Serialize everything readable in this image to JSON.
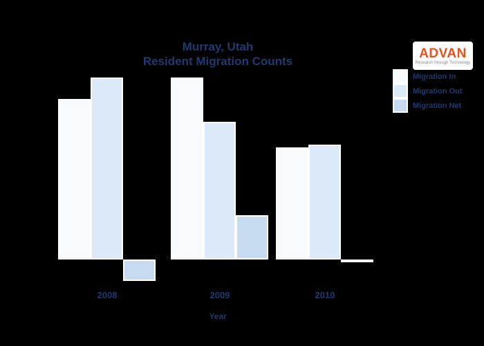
{
  "title": {
    "line1": "Murray, Utah",
    "line2": "Resident Migration Counts"
  },
  "logo": {
    "name": "ADVAN",
    "tagline": "Research through Technology",
    "name_color": "#e8511d"
  },
  "xaxis": {
    "title": "Year"
  },
  "colors": {
    "background": "#000000",
    "text_navy": "#1e3a70",
    "bar_border": "#ffffff"
  },
  "chart_data": {
    "type": "bar",
    "title": "Murray, Utah Resident Migration Counts",
    "categories": [
      "2008",
      "2009",
      "2010"
    ],
    "series": [
      {
        "name": "Migration In",
        "color": "#f8fbfe",
        "values": [
          2320,
          2630,
          1620
        ]
      },
      {
        "name": "Migration Out",
        "color": "#dce9f8",
        "values": [
          2630,
          1990,
          1660
        ]
      },
      {
        "name": "Migration Net",
        "color": "#c6dbf0",
        "values": [
          -310,
          640,
          -40
        ]
      }
    ],
    "xlabel": "Year",
    "ylabel": "",
    "ylim": [
      -400,
      2700
    ],
    "grid": false,
    "legend_position": "upper right",
    "background": "#000000"
  }
}
